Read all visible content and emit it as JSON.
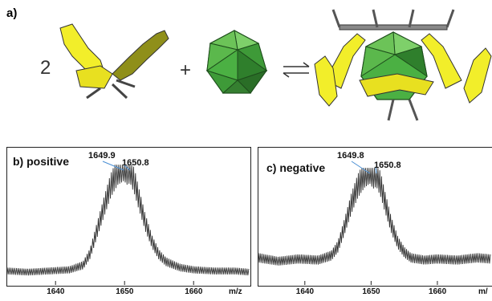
{
  "figure": {
    "panel_a": {
      "label": "a)",
      "coefficient": "2",
      "plus": "+"
    },
    "panel_b": {
      "label": "b) positive",
      "peak1": "1649.9",
      "peak2": "1650.8"
    },
    "panel_c": {
      "label": "c) negative",
      "peak1": "1649.8",
      "peak2": "1650.8"
    },
    "colors": {
      "ligand_yellow": "#f2ee2a",
      "ligand_olive": "#8f8f1a",
      "cluster_green": "#4bb043",
      "frame": "#222222"
    }
  },
  "chart_data": [
    {
      "type": "line",
      "title": "b) positive",
      "xlabel": "m/z",
      "ylabel": "",
      "x_ticks": [
        1640,
        1650,
        1660
      ],
      "x_tick_labels": [
        "1640",
        "1650",
        "1660",
        "m/z"
      ],
      "xlim": [
        1633,
        1668
      ],
      "annotations": [
        "1649.9",
        "1650.8"
      ],
      "series": [
        {
          "x": [
            1633,
            1636,
            1639,
            1642,
            1644,
            1645,
            1646,
            1647,
            1648,
            1649,
            1649.9,
            1650.4,
            1650.8,
            1651.5,
            1652,
            1653,
            1654,
            1655,
            1656,
            1658,
            1660,
            1663,
            1666,
            1668
          ],
          "values": [
            0.1,
            0.09,
            0.1,
            0.11,
            0.15,
            0.25,
            0.45,
            0.65,
            0.84,
            0.96,
            1.0,
            0.96,
            0.98,
            0.86,
            0.74,
            0.52,
            0.35,
            0.24,
            0.18,
            0.13,
            0.11,
            0.1,
            0.1,
            0.09
          ]
        }
      ]
    },
    {
      "type": "line",
      "title": "c) negative",
      "xlabel": "m/z",
      "ylabel": "",
      "x_ticks": [
        1640,
        1650,
        1660
      ],
      "x_tick_labels": [
        "1640",
        "1650",
        "1660",
        "m/"
      ],
      "xlim": [
        1633,
        1668
      ],
      "annotations": [
        "1649.8",
        "1650.8"
      ],
      "series": [
        {
          "x": [
            1633,
            1636,
            1639,
            1642,
            1644,
            1645,
            1646,
            1647,
            1648,
            1649,
            1649.8,
            1650.3,
            1650.8,
            1651.5,
            1652,
            1653,
            1654,
            1655,
            1656,
            1658,
            1660,
            1663,
            1666,
            1668
          ],
          "values": [
            0.22,
            0.19,
            0.21,
            0.2,
            0.24,
            0.32,
            0.5,
            0.7,
            0.86,
            0.96,
            1.0,
            0.95,
            0.97,
            0.86,
            0.74,
            0.52,
            0.36,
            0.27,
            0.22,
            0.2,
            0.21,
            0.2,
            0.22,
            0.21
          ]
        }
      ]
    }
  ]
}
